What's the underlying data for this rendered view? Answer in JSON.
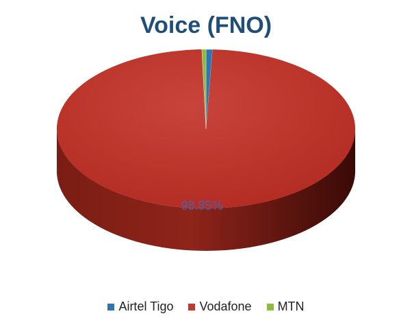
{
  "chart_data": {
    "type": "pie",
    "title": "Voice (FNO)",
    "series": [
      {
        "name": "Airtel Tigo",
        "value": 0.7,
        "color": "#2e75b6"
      },
      {
        "name": "Vodafone",
        "value": 98.85,
        "color": "#c0392b"
      },
      {
        "name": "MTN",
        "value": 0.45,
        "color": "#8dbb3a"
      }
    ],
    "data_labels": [
      {
        "series": "Vodafone",
        "text": "98.85%"
      }
    ],
    "legend_position": "bottom",
    "style": "3d"
  }
}
